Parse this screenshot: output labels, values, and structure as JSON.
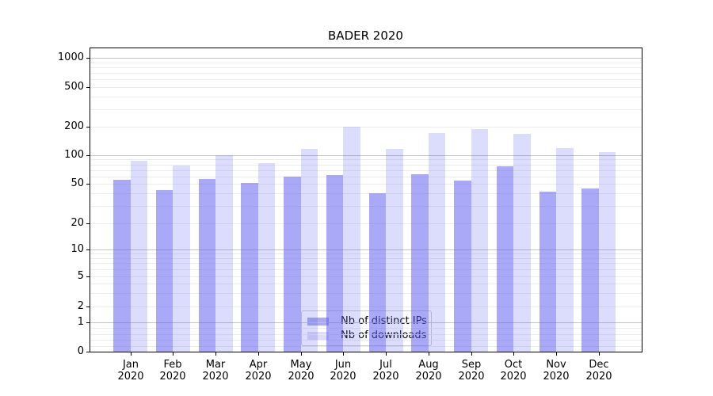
{
  "title": "BADER 2020",
  "chart_data": {
    "type": "bar",
    "title": "BADER 2020",
    "categories": [
      "Jan 2020",
      "Feb 2020",
      "Mar 2020",
      "Apr 2020",
      "May 2020",
      "Jun 2020",
      "Jul 2020",
      "Aug 2020",
      "Sep 2020",
      "Oct 2020",
      "Nov 2020",
      "Dec 2020"
    ],
    "series": [
      {
        "name": "Nb of distinct IPs",
        "color": "rgba(90,90,240,0.52)",
        "swatch_color": "#a9a9f7",
        "values": [
          55,
          43,
          56,
          51,
          60,
          62,
          40,
          63,
          54,
          77,
          42,
          45
        ]
      },
      {
        "name": "Nb of downloads",
        "color": "rgba(90,90,240,0.21)",
        "swatch_color": "#dcdcfc",
        "values": [
          87,
          78,
          100,
          82,
          117,
          200,
          116,
          170,
          187,
          166,
          118,
          108
        ]
      }
    ],
    "yticks": [
      0,
      1,
      2,
      5,
      10,
      20,
      50,
      100,
      200,
      500,
      1000
    ],
    "yscale": "symlog",
    "ylim": [
      0,
      1270
    ],
    "xlabel": "",
    "ylabel": "",
    "grid": true,
    "legend_position": "lower center",
    "background_color": "#ffffff",
    "spine_color": "#000000",
    "major_grid_color": "#c4c4c4",
    "minor_grid_color": "#ececec"
  }
}
